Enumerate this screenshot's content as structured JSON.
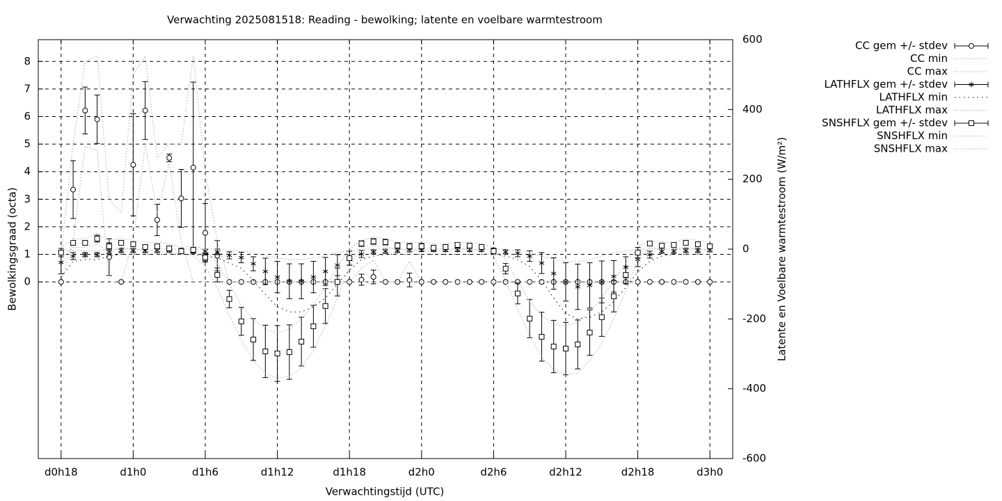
{
  "chart_data": {
    "type": "errorbar",
    "title": "Verwachting 2025081518: Reading - bewolking; latente en voelbare warmtestroom",
    "xlabel": "Verwachtingstijd (UTC)",
    "ylabel": "Bewolkingsgraad (octa)",
    "y2label": "Latente en Voelbare warmtestroom (W/m²)",
    "x": [
      18,
      19,
      20,
      21,
      22,
      23,
      24,
      25,
      26,
      27,
      28,
      29,
      30,
      31,
      32,
      33,
      34,
      35,
      36,
      37,
      38,
      39,
      40,
      41,
      42,
      43,
      44,
      45,
      46,
      47,
      48,
      49,
      50,
      51,
      52,
      53,
      54,
      55,
      56,
      57,
      58,
      59,
      60,
      61,
      62,
      63,
      64,
      65,
      66,
      67,
      68,
      69,
      70,
      71,
      72
    ],
    "xlim": [
      16.1,
      73.9
    ],
    "xticks": [
      {
        "value": 18,
        "label": "d0h18"
      },
      {
        "value": 24,
        "label": "d1h0"
      },
      {
        "value": 30,
        "label": "d1h6"
      },
      {
        "value": 36,
        "label": "d1h12"
      },
      {
        "value": 42,
        "label": "d1h18"
      },
      {
        "value": 48,
        "label": "d2h0"
      },
      {
        "value": 54,
        "label": "d2h6"
      },
      {
        "value": 60,
        "label": "d2h12"
      },
      {
        "value": 66,
        "label": "d2h18"
      },
      {
        "value": 72,
        "label": "d3h0"
      }
    ],
    "ylim": [
      -6.41,
      8.79
    ],
    "yticks": [
      0,
      1,
      2,
      3,
      4,
      5,
      6,
      7,
      8
    ],
    "y2lim": [
      -600,
      600
    ],
    "y2ticks": [
      -600,
      -400,
      -200,
      0,
      200,
      400,
      600
    ],
    "grid": true,
    "legend": "outside-right",
    "series": [
      {
        "name": "CC gem +/- stdev",
        "color": "#000000",
        "marker": "circle",
        "values": [
          0,
          3.35,
          6.22,
          5.9,
          0.9,
          0,
          4.25,
          6.22,
          2.25,
          4.5,
          3.03,
          4.15,
          1.78,
          0.95,
          0,
          0,
          0,
          0,
          0,
          0,
          0,
          0,
          0,
          0,
          0,
          0.08,
          0.18,
          0,
          0,
          0.07,
          0,
          0,
          0,
          0,
          0,
          0,
          0,
          0,
          0,
          0,
          0,
          0,
          0,
          0,
          0,
          0,
          0,
          0,
          0,
          0,
          0,
          0,
          0,
          0,
          0
        ],
        "errors": [
          0,
          1.05,
          0.85,
          0.88,
          0.67,
          0,
          1.85,
          1.05,
          0.57,
          0.14,
          1.05,
          3.1,
          1.06,
          0.55,
          0,
          0,
          0,
          0,
          0,
          0,
          0,
          0,
          0,
          0,
          0,
          0.2,
          0.25,
          0,
          0,
          0.25,
          0,
          0,
          0,
          0,
          0,
          0,
          0,
          0,
          0,
          0,
          0,
          0,
          0,
          0,
          0,
          0,
          0,
          0,
          0,
          0,
          0,
          0,
          0,
          0,
          0
        ]
      },
      {
        "name": "CC min",
        "color": "#aaaaaa",
        "style": "dotted",
        "values": [
          0,
          1.5,
          4.9,
          4.8,
          0,
          0,
          1.5,
          5,
          2.5,
          4.3,
          1.5,
          0,
          0,
          0,
          0,
          0,
          0,
          0,
          0,
          0,
          0,
          0,
          0,
          0,
          0,
          0,
          0,
          0,
          0,
          0,
          0,
          0,
          0,
          0,
          0,
          0,
          0,
          0,
          0,
          0,
          0,
          0,
          0,
          0,
          0,
          0,
          0,
          0,
          0,
          0,
          0,
          0,
          0,
          0,
          0
        ]
      },
      {
        "name": "CC max",
        "color": "#aaaaaa",
        "style": "dotted",
        "values": [
          1,
          5,
          8,
          8.2,
          3,
          2.5,
          7.5,
          8.2,
          4.5,
          5,
          5,
          8.2,
          4,
          1.5,
          0,
          0,
          0,
          0,
          0,
          0,
          0,
          0,
          0,
          0,
          0,
          0.5,
          0.8,
          0,
          0,
          0.75,
          0,
          0,
          0,
          0,
          0,
          0,
          0,
          0,
          0,
          0,
          0,
          0,
          0,
          0,
          0,
          0,
          0,
          0,
          0,
          0,
          0,
          0,
          0,
          0,
          0
        ]
      },
      {
        "name": "LATHFLX gem +/- stdev",
        "color": "#000000",
        "marker": "asterisk",
        "axis": "y2",
        "values": [
          -38,
          -20,
          -16,
          -16,
          -8,
          -4,
          -4,
          -4,
          -4,
          -4,
          -4,
          -6,
          -6,
          -8,
          -18,
          -24,
          -42,
          -64,
          -80,
          -92,
          -92,
          -80,
          -64,
          -46,
          -26,
          -14,
          -8,
          -6,
          -4,
          -2,
          -2,
          -2,
          -2,
          -2,
          -2,
          -2,
          -2,
          -8,
          -12,
          -20,
          -40,
          -70,
          -94,
          -108,
          -104,
          -94,
          -78,
          -52,
          -30,
          -16,
          -6,
          -6,
          -4,
          -4,
          -2
        ],
        "errors": [
          33,
          10,
          6,
          6,
          6,
          6,
          6,
          6,
          6,
          6,
          6,
          6,
          6,
          8,
          10,
          15,
          20,
          38,
          45,
          50,
          50,
          45,
          40,
          30,
          20,
          10,
          6,
          6,
          6,
          6,
          5,
          5,
          5,
          5,
          5,
          5,
          5,
          6,
          10,
          15,
          30,
          45,
          55,
          65,
          65,
          60,
          45,
          30,
          20,
          10,
          6,
          6,
          6,
          6,
          6
        ]
      },
      {
        "name": "LATHFLX min",
        "color": "#000000",
        "style": "sparse",
        "axis": "y2",
        "values": [
          -80,
          -35,
          -30,
          -30,
          -20,
          -15,
          -15,
          -15,
          -15,
          -15,
          -15,
          -15,
          -20,
          -25,
          -40,
          -55,
          -90,
          -130,
          -165,
          -180,
          -180,
          -165,
          -140,
          -100,
          -60,
          -30,
          -20,
          -15,
          -15,
          -15,
          -15,
          -15,
          -15,
          -15,
          -15,
          -15,
          -15,
          -20,
          -30,
          -50,
          -90,
          -140,
          -185,
          -200,
          -195,
          -180,
          -150,
          -110,
          -65,
          -35,
          -20,
          -15,
          -15,
          -15,
          -15
        ]
      },
      {
        "name": "LATHFLX max",
        "color": "#aaaaaa",
        "style": "dotted",
        "axis": "y2",
        "values": [
          0,
          -5,
          -5,
          -5,
          0,
          0,
          0,
          0,
          0,
          0,
          0,
          0,
          0,
          0,
          -5,
          -5,
          -10,
          -20,
          -25,
          -30,
          -30,
          -25,
          -20,
          -10,
          -5,
          0,
          0,
          0,
          0,
          0,
          0,
          0,
          0,
          0,
          0,
          0,
          0,
          0,
          -5,
          -10,
          -20,
          -30,
          -35,
          -35,
          -30,
          -20,
          -10,
          -5,
          0,
          0,
          0,
          0,
          0,
          0,
          0
        ]
      },
      {
        "name": "SNSHFLX gem +/- stdev",
        "color": "#000000",
        "marker": "square",
        "axis": "y2",
        "values": [
          -10,
          18,
          18,
          30,
          8,
          18,
          14,
          6,
          8,
          2,
          -6,
          -2,
          -24,
          -74,
          -143,
          -207,
          -259,
          -293,
          -299,
          -295,
          -265,
          -221,
          -163,
          -94,
          -26,
          16,
          22,
          20,
          10,
          8,
          8,
          4,
          6,
          12,
          10,
          6,
          -6,
          -56,
          -127,
          -199,
          -251,
          -279,
          -285,
          -273,
          -239,
          -195,
          -135,
          -74,
          -10,
          16,
          10,
          12,
          18,
          14,
          8
        ],
        "errors": [
          12,
          5,
          5,
          10,
          10,
          5,
          5,
          5,
          5,
          5,
          5,
          5,
          10,
          20,
          25,
          40,
          60,
          75,
          80,
          78,
          70,
          60,
          50,
          40,
          20,
          8,
          8,
          8,
          8,
          8,
          8,
          6,
          6,
          6,
          6,
          6,
          6,
          15,
          30,
          55,
          70,
          75,
          75,
          70,
          65,
          55,
          45,
          25,
          15,
          6,
          6,
          6,
          6,
          6,
          6
        ]
      },
      {
        "name": "SNSHFLX min",
        "color": "#aaaaaa",
        "style": "dotted",
        "axis": "y2",
        "values": [
          -30,
          5,
          5,
          15,
          -10,
          5,
          0,
          -5,
          -5,
          -10,
          -15,
          -20,
          -50,
          -110,
          -190,
          -260,
          -320,
          -355,
          -370,
          -365,
          -340,
          -290,
          -220,
          -140,
          -50,
          5,
          10,
          5,
          0,
          -5,
          -5,
          -5,
          -5,
          0,
          0,
          -5,
          -20,
          -90,
          -170,
          -250,
          -310,
          -345,
          -360,
          -355,
          -320,
          -270,
          -200,
          -120,
          -30,
          5,
          0,
          0,
          5,
          0,
          -5
        ]
      },
      {
        "name": "SNSHFLX max",
        "color": "#aaaaaa",
        "style": "dotted",
        "axis": "y2",
        "values": [
          5,
          30,
          30,
          45,
          25,
          30,
          25,
          20,
          20,
          15,
          5,
          10,
          0,
          -40,
          -100,
          -160,
          -200,
          -230,
          -240,
          -230,
          -200,
          -160,
          -110,
          -50,
          0,
          25,
          35,
          30,
          20,
          20,
          20,
          15,
          15,
          20,
          20,
          15,
          5,
          -30,
          -90,
          -150,
          -190,
          -215,
          -220,
          -210,
          -180,
          -140,
          -90,
          -40,
          5,
          25,
          20,
          20,
          30,
          25,
          20
        ]
      }
    ]
  }
}
